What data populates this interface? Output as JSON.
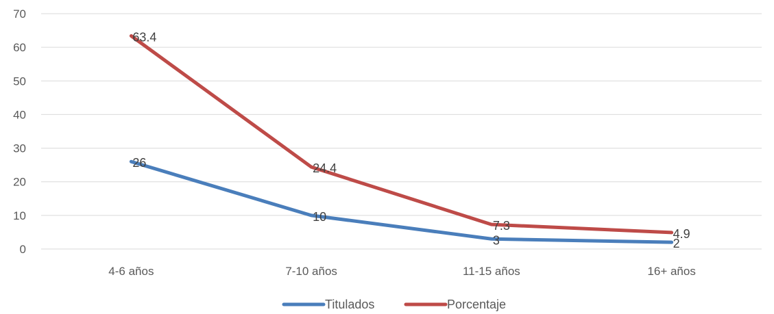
{
  "chart_data": {
    "type": "line",
    "title": "",
    "xlabel": "",
    "ylabel": "",
    "categories": [
      "4-6 años",
      "7-10 años",
      "11-15 años",
      "16+ años"
    ],
    "ylim": [
      0,
      70
    ],
    "yticks": [
      0,
      10,
      20,
      30,
      40,
      50,
      60,
      70
    ],
    "grid": true,
    "legend": "bottom",
    "series": [
      {
        "name": "Titulados",
        "values": [
          26,
          10,
          3,
          2
        ],
        "labels": [
          "26",
          "10",
          "3",
          "2"
        ],
        "color": "#4a7ebb"
      },
      {
        "name": "Porcentaje",
        "values": [
          63.4,
          24.4,
          7.3,
          4.9
        ],
        "labels": [
          "63.4",
          "24.4",
          "7.3",
          "4.9"
        ],
        "color": "#be4b48"
      }
    ]
  }
}
